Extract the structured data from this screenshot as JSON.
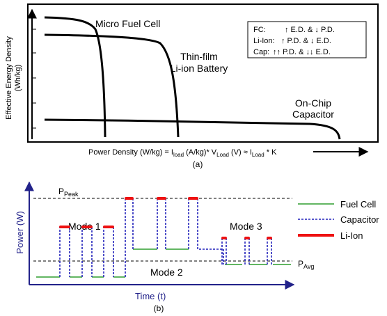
{
  "top_panel": {
    "y_axis_label_line1": "Effective Energy Density",
    "y_axis_label_line2": "(Wh/kg)",
    "x_axis_label": {
      "p1": "Power Density (W/kg) = I",
      "s1": "load",
      "p2": " (A/kg)* V",
      "s2": "Load",
      "p3": " (V) ≈ I",
      "s3": "Load",
      "p4": " * K"
    },
    "curve_labels": {
      "fuel_cell": "Micro Fuel Cell",
      "liion_line1": "Thin-film",
      "liion_line2": "Li-ion Battery",
      "cap_line1": "On-Chip",
      "cap_line2": "Capacitor"
    },
    "legend_box": {
      "rows": [
        {
          "key": "FC:",
          "text": "↑ E.D. & ↓ P.D."
        },
        {
          "key": "Li-Ion:",
          "text": "↑ P.D. & ↓ E.D."
        },
        {
          "key": "Cap:",
          "text": "↑↑ P.D. & ↓↓ E.D."
        }
      ]
    },
    "caption": "(a)"
  },
  "bottom_panel": {
    "y_axis_label": "Power (W)",
    "x_axis_label": "Time (t)",
    "peak_label": {
      "main": "P",
      "sub": "Peak"
    },
    "avg_label": {
      "main": "P",
      "sub": "Avg"
    },
    "mode_labels": [
      "Mode 1",
      "Mode 2",
      "Mode 3"
    ],
    "legend": [
      {
        "label": "Fuel Cell",
        "color": "#2e9e2e",
        "style": "solid"
      },
      {
        "label": "Capacitor",
        "color": "#2222bb",
        "style": "dotted"
      },
      {
        "label": "Li-Ion",
        "color": "#ee1111",
        "style": "thick"
      }
    ],
    "caption": "(b)"
  },
  "colors": {
    "fuel_cell": "#2e9e2e",
    "capacitor": "#2222bb",
    "li_ion": "#ee1111",
    "axis_b": "#22228a"
  }
}
